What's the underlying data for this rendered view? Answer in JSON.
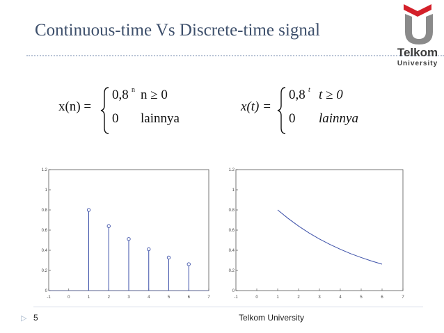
{
  "slide": {
    "title": "Continuous-time Vs Discrete-time signal",
    "page_number": "5",
    "footer": "Telkom University"
  },
  "logo": {
    "line1": "Telkom",
    "line2": "University",
    "accent_color": "#d4202a",
    "text_color": "#5a5a5a"
  },
  "formulas": {
    "discrete": {
      "lhs": "x(n) =",
      "case1_value": "0,8",
      "case1_exponent": "n",
      "case1_condition": "n ≥ 0",
      "case2_value": "0",
      "case2_condition": "lainnya"
    },
    "continuous": {
      "lhs": "x(t) =",
      "case1_value": "0,8",
      "case1_exponent": "t",
      "case1_condition": "t ≥ 0",
      "case2_value": "0",
      "case2_condition": "lainnya"
    }
  },
  "chart_data": [
    {
      "type": "scatter",
      "style": "stem",
      "x": [
        1,
        2,
        3,
        4,
        5,
        6
      ],
      "y": [
        0.8,
        0.64,
        0.512,
        0.41,
        0.328,
        0.262
      ],
      "xlim": [
        -1,
        7
      ],
      "ylim": [
        0,
        1.2
      ],
      "xticks": [
        "-1",
        "0",
        "1",
        "2",
        "3",
        "4",
        "5",
        "6",
        "7"
      ],
      "yticks": [
        "0",
        "0.2",
        "0.4",
        "0.6",
        "0.8",
        "1",
        "1.2"
      ],
      "color": "#3b4fa8",
      "grid": false
    },
    {
      "type": "line",
      "x": [
        1,
        1.5,
        2,
        2.5,
        3,
        3.5,
        4,
        4.5,
        5,
        5.5,
        6
      ],
      "y": [
        0.8,
        0.716,
        0.64,
        0.572,
        0.512,
        0.458,
        0.41,
        0.366,
        0.328,
        0.293,
        0.262
      ],
      "xlim": [
        -1,
        7
      ],
      "ylim": [
        0,
        1.2
      ],
      "xticks": [
        "-1",
        "0",
        "1",
        "2",
        "3",
        "4",
        "5",
        "6",
        "7"
      ],
      "yticks": [
        "0",
        "0.2",
        "0.4",
        "0.6",
        "0.8",
        "1",
        "1.2"
      ],
      "color": "#3b4fa8",
      "grid": false
    }
  ]
}
